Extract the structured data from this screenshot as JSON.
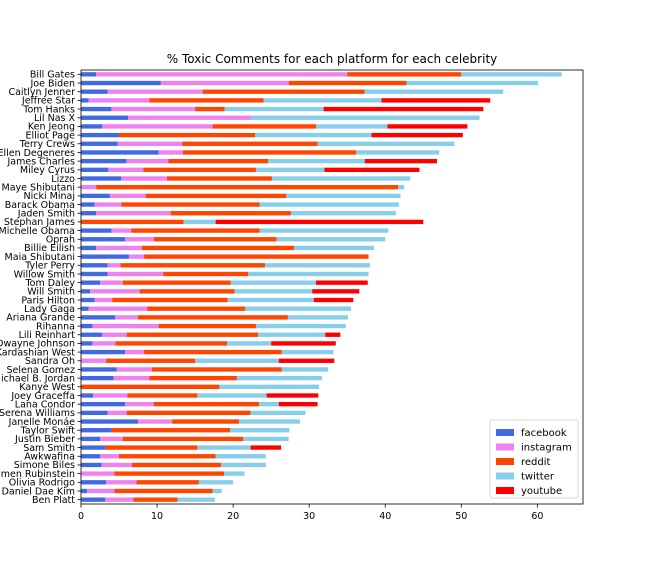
{
  "chart_data": {
    "type": "bar",
    "orientation": "horizontal",
    "stacked": true,
    "title": "% Toxic Comments for each platform for each celebrity",
    "xlabel": "",
    "ylabel": "",
    "xlim": [
      0,
      66
    ],
    "xticks": [
      0,
      10,
      20,
      30,
      40,
      50,
      60
    ],
    "grid": false,
    "legend_position": "lower-right",
    "categories": [
      "Bill Gates",
      "Joe Biden",
      "Caitlyn Jenner",
      "Jeffree Star",
      "Tom Hanks",
      "Lil Nas X",
      "Ken Jeong",
      "Elliot Page",
      "Terry Crews",
      "Ellen Degeneres",
      "James Charles",
      "Miley Cyrus",
      "Lizzo",
      "Maye Shibutani",
      "Nicki Minaj",
      "Barack Obama",
      "Jaden Smith",
      "Stephan James",
      "Michelle Obama",
      "Oprah",
      "Billie Eilish",
      "Maia Shibutani",
      "Tyler Perry",
      "Willow Smith",
      "Tom Daley",
      "Will Smith",
      "Paris Hilton",
      "Lady Gaga",
      "Ariana Grande",
      "Rihanna",
      "Lili Reinhart",
      "Dwayne Johnson",
      "Kardashian West",
      "Sandra Oh",
      "Selena Gomez",
      "Michael B. Jordan",
      "Kanye West",
      "Joey Graceffa",
      "Lana Condor",
      "Serena Williams",
      "Janelle Monáe",
      "Taylor Swift",
      "Justin Bieber",
      "Sam Smith",
      "Awkwafina",
      "Simone Biles",
      "Ramen Rubinstein",
      "Olivia Rodrigo",
      "Daniel Dae Kim",
      "Ben Platt"
    ],
    "series": [
      {
        "name": "facebook",
        "color": "#4169e1",
        "values": [
          2,
          10.5,
          3.5,
          1,
          4,
          6.2,
          2.8,
          5,
          4.8,
          10.2,
          6,
          3.6,
          5.3,
          0,
          3.8,
          1.8,
          2,
          0,
          4,
          5.8,
          2,
          6.3,
          3.5,
          3.5,
          2.5,
          1.2,
          1.8,
          1,
          4.5,
          1.5,
          2.8,
          1.5,
          5.8,
          0,
          4.7,
          4.3,
          0,
          1.6,
          5.8,
          3.5,
          7.5,
          4,
          2.5,
          3.2,
          2.5,
          2.7,
          0,
          3.3,
          0.8,
          3.2
        ]
      },
      {
        "name": "instagram",
        "color": "#ee82ee",
        "values": [
          33,
          16.8,
          12.5,
          8,
          11,
          16.2,
          14.5,
          0,
          8.5,
          3.2,
          5.5,
          4.6,
          6,
          2,
          4.7,
          3.5,
          9.8,
          0,
          2.6,
          3.8,
          6,
          2,
          1.7,
          7.3,
          3,
          6.5,
          2.3,
          7.7,
          3,
          8.7,
          3.2,
          3,
          2.5,
          3.3,
          4.6,
          4.7,
          0,
          4.5,
          3.8,
          2.5,
          4.5,
          0,
          3,
          0,
          2.5,
          4,
          4.4,
          4,
          3.6,
          3.7
        ]
      },
      {
        "name": "reddit",
        "color": "#ff4500",
        "values": [
          15,
          15.5,
          21.3,
          15,
          3.9,
          0,
          13.6,
          17.9,
          17.8,
          22.8,
          13.1,
          14.8,
          13.8,
          39.7,
          18.5,
          18.2,
          15.8,
          13.5,
          16.9,
          16.1,
          20,
          29.5,
          19,
          11.2,
          14.2,
          12.5,
          15.2,
          12.9,
          19.7,
          12.8,
          17.3,
          14.7,
          18.1,
          11.7,
          17.1,
          11.5,
          18.2,
          9.2,
          13.8,
          16.3,
          8.8,
          15.6,
          15.8,
          12.1,
          12.7,
          11.7,
          14.4,
          8.2,
          12.9,
          5.8
        ]
      },
      {
        "name": "twitter",
        "color": "#87ceeb",
        "values": [
          13.2,
          17.3,
          18.2,
          15.5,
          13,
          30,
          9.4,
          15.3,
          18,
          10.9,
          12.7,
          9,
          18.2,
          0.8,
          15,
          18.3,
          13.8,
          4.2,
          16.9,
          14.3,
          10.5,
          0,
          13.8,
          15.8,
          11.2,
          10.2,
          11.3,
          13.9,
          7.9,
          11.8,
          8.8,
          5.8,
          6.8,
          11,
          6.1,
          11.2,
          13.1,
          9.1,
          2.6,
          7.2,
          8,
          7.8,
          6,
          7,
          6.6,
          5.9,
          2.7,
          4.5,
          1.2,
          4.9
        ]
      },
      {
        "name": "youtube",
        "color": "#ff0000",
        "values": [
          0,
          0,
          0,
          14.3,
          21,
          0,
          10.5,
          12,
          0,
          0,
          9.5,
          12.5,
          0,
          0,
          0,
          0,
          0,
          27.3,
          0,
          0,
          0,
          0,
          0,
          0,
          6.8,
          6.2,
          5.2,
          0,
          0,
          0,
          2,
          8.5,
          0,
          7.3,
          0,
          0,
          0,
          6.8,
          5.1,
          0,
          0,
          0,
          0,
          4,
          0,
          0,
          0,
          0,
          0,
          0
        ]
      }
    ]
  }
}
